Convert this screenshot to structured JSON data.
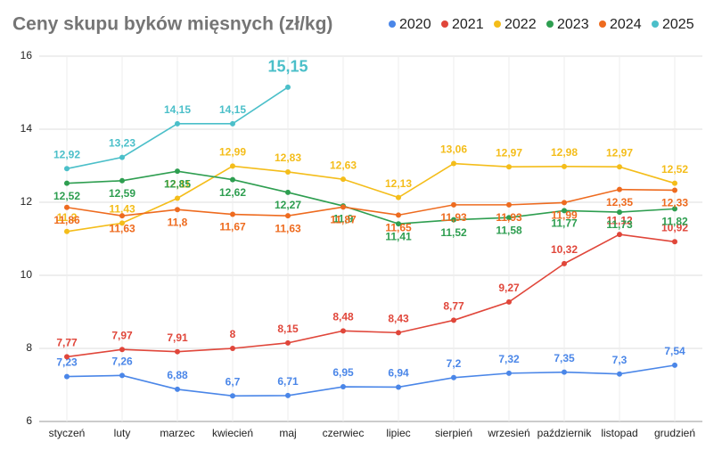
{
  "chart_data": {
    "type": "line",
    "title": "Ceny skupu byków mięsnych (zł/kg)",
    "categories": [
      "styczeń",
      "luty",
      "marzec",
      "kwiecień",
      "maj",
      "czerwiec",
      "lipiec",
      "sierpień",
      "wrzesień",
      "październik",
      "listopad",
      "grudzień"
    ],
    "ylim": [
      6,
      16
    ],
    "yticks": [
      6,
      8,
      10,
      12,
      14,
      16
    ],
    "grid": true,
    "legend": "top-right",
    "series": [
      {
        "name": "2020",
        "color": "#4a86e8",
        "values": [
          7.23,
          7.26,
          6.88,
          6.7,
          6.71,
          6.95,
          6.94,
          7.2,
          7.32,
          7.35,
          7.3,
          7.54
        ],
        "value_labels": [
          "7,23",
          "7,26",
          "6,88",
          "6,7",
          "6,71",
          "6,95",
          "6,94",
          "7,2",
          "7,32",
          "7,35",
          "7,3",
          "7,54"
        ]
      },
      {
        "name": "2021",
        "color": "#e0463a",
        "values": [
          7.77,
          7.97,
          7.91,
          8,
          8.15,
          8.48,
          8.43,
          8.77,
          9.27,
          10.32,
          11.12,
          10.92
        ],
        "value_labels": [
          "7,77",
          "7,97",
          "7,91",
          "8",
          "8,15",
          "8,48",
          "8,43",
          "8,77",
          "9,27",
          "10,32",
          "11,12",
          "10,92"
        ]
      },
      {
        "name": "2022",
        "color": "#f4bd1a",
        "values": [
          11.2,
          11.43,
          12.11,
          12.99,
          12.83,
          12.63,
          12.13,
          13.06,
          12.97,
          12.98,
          12.97,
          12.52
        ],
        "value_labels": [
          "11,2",
          "11,43",
          "12,11",
          "12,99",
          "12,83",
          "12,63",
          "12,13",
          "13,06",
          "12,97",
          "12,98",
          "12,97",
          "12,52"
        ]
      },
      {
        "name": "2023",
        "color": "#2e9e50",
        "values": [
          12.52,
          12.59,
          12.85,
          12.62,
          12.27,
          11.9,
          11.41,
          11.52,
          11.58,
          11.77,
          11.73,
          11.82
        ],
        "value_labels": [
          "12,52",
          "12,59",
          "12,85",
          "12,62",
          "12,27",
          "11,9",
          "11,41",
          "11,52",
          "11,58",
          "11,77",
          "11,73",
          "11,82"
        ]
      },
      {
        "name": "2024",
        "color": "#ee6b1f",
        "values": [
          11.86,
          11.63,
          11.8,
          11.67,
          11.63,
          11.87,
          11.65,
          11.93,
          11.93,
          11.99,
          12.35,
          12.33
        ],
        "value_labels": [
          "11,86",
          "11,63",
          "11,8",
          "11,67",
          "11,63",
          "11,87",
          "11,65",
          "11,93",
          "11,93",
          "11,99",
          "12,35",
          "12,33"
        ]
      },
      {
        "name": "2025",
        "color": "#4bbfc9",
        "values": [
          12.92,
          13.23,
          14.15,
          14.15,
          15.15,
          null,
          null,
          null,
          null,
          null,
          null,
          null
        ],
        "value_labels": [
          "12,92",
          "13,23",
          "14,15",
          "14,15",
          "15,15",
          null,
          null,
          null,
          null,
          null,
          null,
          null
        ]
      }
    ]
  }
}
